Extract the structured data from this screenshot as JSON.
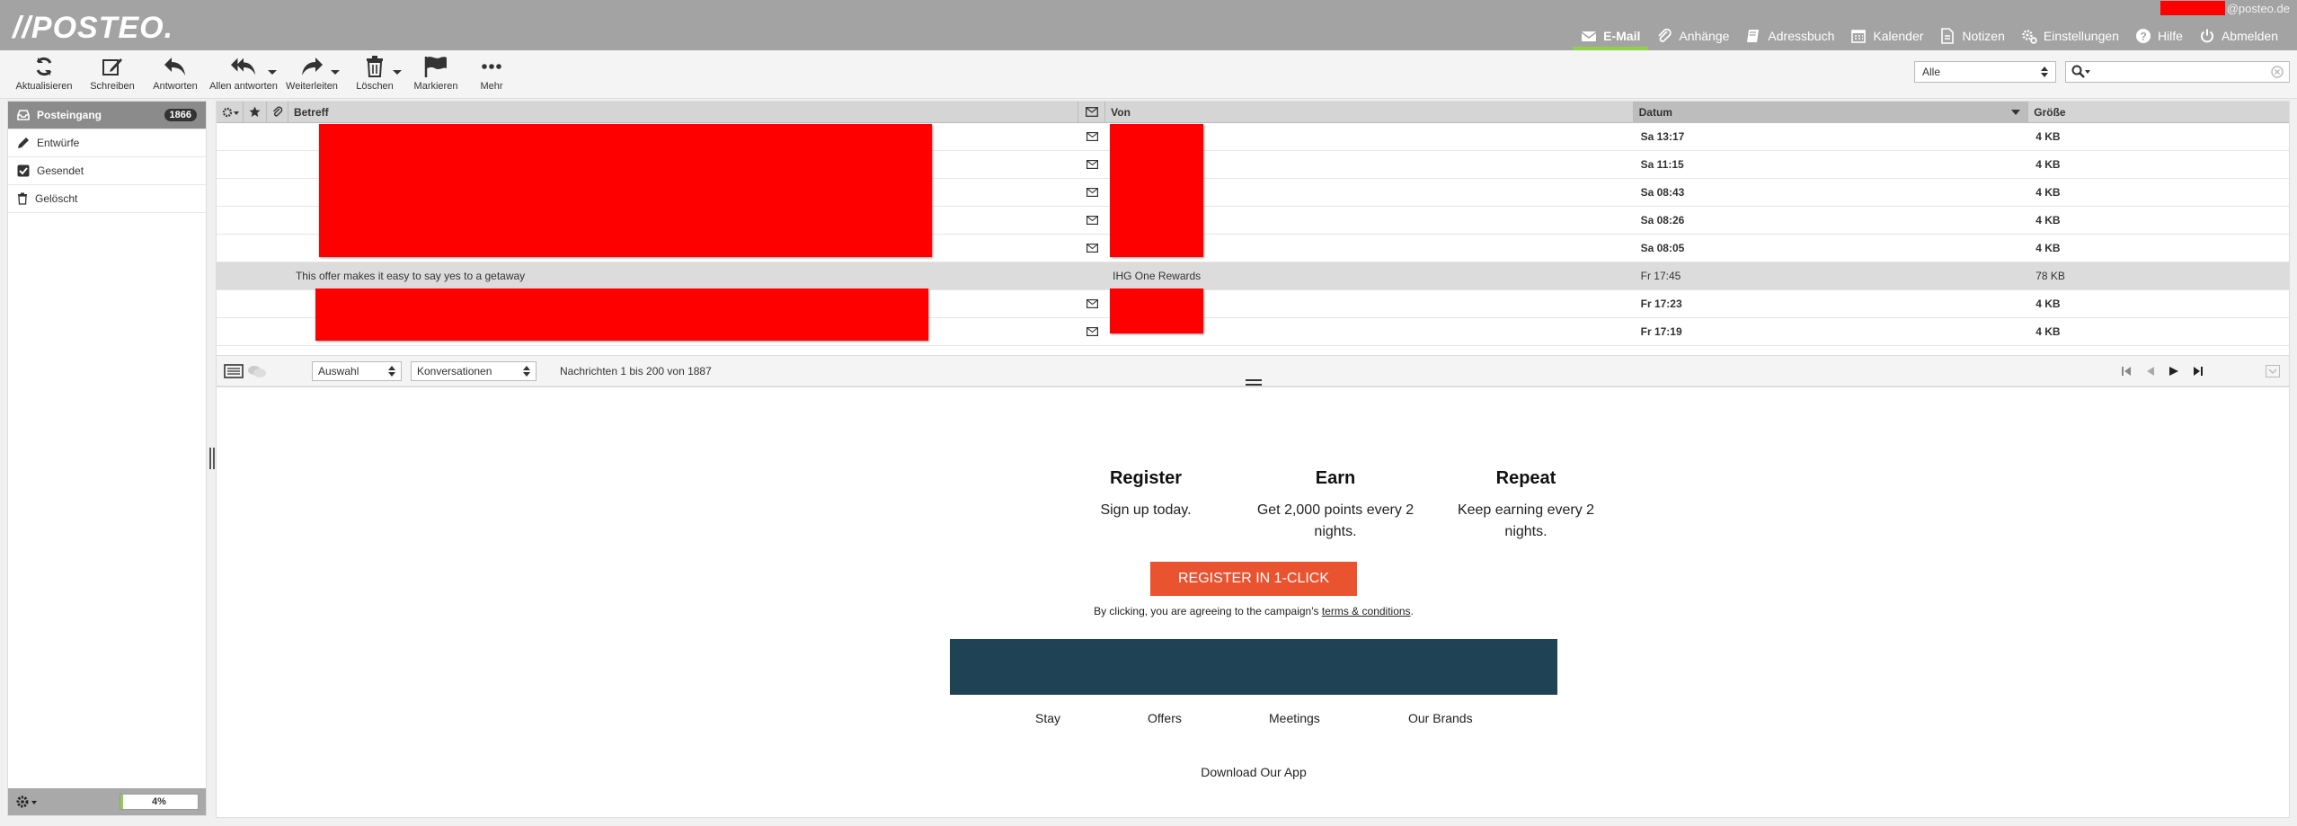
{
  "header": {
    "logo": "//POSTEO.",
    "account_domain": "@posteo.de",
    "nav": [
      {
        "label": "E-Mail",
        "icon": "envelope-icon",
        "active": true
      },
      {
        "label": "Anhänge",
        "icon": "paperclip-icon"
      },
      {
        "label": "Adressbuch",
        "icon": "book-icon"
      },
      {
        "label": "Kalender",
        "icon": "calendar-icon"
      },
      {
        "label": "Notizen",
        "icon": "note-icon"
      },
      {
        "label": "Einstellungen",
        "icon": "gears-icon"
      },
      {
        "label": "Hilfe",
        "icon": "help-icon"
      },
      {
        "label": "Abmelden",
        "icon": "power-icon"
      }
    ]
  },
  "toolbar": {
    "refresh": "Aktualisieren",
    "compose": "Schreiben",
    "reply": "Antworten",
    "reply_all": "Allen antworten",
    "forward": "Weiterleiten",
    "delete": "Löschen",
    "mark": "Markieren",
    "more": "Mehr",
    "filter_value": "Alle"
  },
  "sidebar": {
    "folders": [
      {
        "label": "Posteingang",
        "count": "1866",
        "icon": "inbox-icon"
      },
      {
        "label": "Entwürfe",
        "icon": "pencil-icon"
      },
      {
        "label": "Gesendet",
        "icon": "checkbox-icon"
      },
      {
        "label": "Gelöscht",
        "icon": "trash-icon"
      }
    ],
    "quota_label": "4%",
    "quota_fraction": 0.04
  },
  "list": {
    "headers": {
      "subject": "Betreff",
      "from": "Von",
      "date": "Datum",
      "size": "Größe"
    },
    "rows": [
      {
        "subject": "",
        "from": "",
        "date": "Sa 13:17",
        "size": "4 KB"
      },
      {
        "subject": "",
        "from": "",
        "date": "Sa 11:15",
        "size": "4 KB"
      },
      {
        "subject": "",
        "from": "",
        "date": "Sa 08:43",
        "size": "4 KB"
      },
      {
        "subject": "",
        "from": "",
        "date": "Sa 08:26",
        "size": "4 KB"
      },
      {
        "subject": "",
        "from": "",
        "date": "Sa 08:05",
        "size": "4 KB"
      },
      {
        "subject": "This offer makes it easy to say yes to a getaway",
        "from": "IHG One Rewards",
        "date": "Fr 17:45",
        "size": "78 KB"
      },
      {
        "subject": "",
        "from": "",
        "date": "Fr 17:23",
        "size": "4 KB"
      },
      {
        "subject": "",
        "from": "",
        "date": "Fr 17:19",
        "size": "4 KB"
      }
    ],
    "footer": {
      "selection": "Auswahl",
      "threads": "Konversationen",
      "count_text": "Nachrichten 1 bis 200 von 1887"
    }
  },
  "preview": {
    "cols": [
      {
        "title": "Register",
        "text": "Sign up today."
      },
      {
        "title": "Earn",
        "text": "Get 2,000 points every 2 nights."
      },
      {
        "title": "Repeat",
        "text": "Keep earning every 2 nights."
      }
    ],
    "cta": "REGISTER IN 1-CLICK",
    "terms_prefix": "By clicking, you are agreeing to the campaign's ",
    "terms_link": "terms & conditions",
    "terms_suffix": ".",
    "links": [
      "Stay",
      "Offers",
      "Meetings",
      "Our Brands"
    ],
    "download": "Download Our App"
  }
}
